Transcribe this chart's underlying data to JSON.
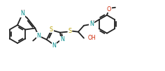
{
  "bg_color": "#ffffff",
  "bond_color": "#222222",
  "atom_colors": {
    "N": "#008b8b",
    "S": "#b8a000",
    "O": "#cc2200",
    "H": "#222222",
    "C": "#222222"
  },
  "figsize": [
    2.36,
    1.02
  ],
  "dpi": 100
}
